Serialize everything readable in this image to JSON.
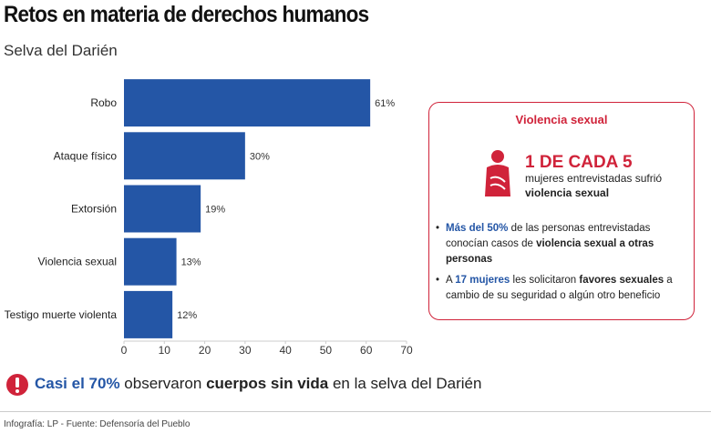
{
  "chart_data": {
    "type": "barh",
    "title": "Retos en materia de derechos humanos",
    "subtitle": "Selva del Darién",
    "categories": [
      "Robo",
      "Ataque físico",
      "Extorsión",
      "Violencia sexual",
      "Testigo muerte violenta"
    ],
    "values": [
      61,
      30,
      19,
      13,
      12
    ],
    "value_labels": [
      "61%",
      "30%",
      "19%",
      "13%",
      "12%"
    ],
    "color": "#2456a6",
    "xlim": [
      0,
      70
    ],
    "xticks": [
      0,
      10,
      20,
      30,
      40,
      50,
      60,
      70
    ]
  },
  "panel": {
    "title": "Violencia sexual",
    "headline": "1 DE CADA 5",
    "line1": "mujeres entrevistadas sufrió",
    "line2": "violencia sexual",
    "bullets": [
      [
        "Más del 50%",
        " de las personas entrevistadas conocían casos de ",
        "violencia sexual a otras personas"
      ],
      [
        "A ",
        "17 mujeres",
        " les solicitaron ",
        "favores sexuales",
        " a cambio de su seguridad o algún otro beneficio"
      ]
    ]
  },
  "callout": [
    "Casi el 70%",
    " observaron ",
    "cuerpos sin vida",
    " en la selva del Darién"
  ],
  "source": "Infografía: LP - Fuente: Defensoría del Pueblo"
}
